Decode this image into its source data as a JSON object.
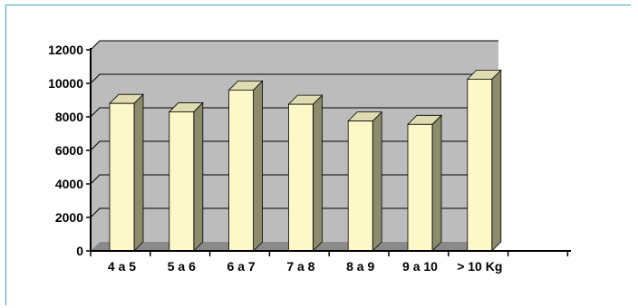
{
  "chart_data": {
    "type": "bar",
    "categories": [
      "4 a 5",
      "5 a 6",
      "6 a 7",
      "7 a 8",
      "8 a 9",
      "9 a 10",
      "> 10 Kg"
    ],
    "values": [
      8800,
      8300,
      9600,
      8750,
      7750,
      7550,
      10250
    ],
    "title": "",
    "xlabel": "",
    "ylabel": "",
    "ylim": [
      0,
      12000
    ],
    "yticks": [
      0,
      2000,
      4000,
      6000,
      8000,
      10000,
      12000
    ],
    "grid": true,
    "legend": "none",
    "style": "3d-column",
    "colors": {
      "bar_front": "#fdf8c8",
      "bar_side": "#8c8c6c",
      "bar_top": "#e0dcb2",
      "wall": "#bcbcbc",
      "floor": "#8a8a8a",
      "gridline": "#000000"
    }
  }
}
